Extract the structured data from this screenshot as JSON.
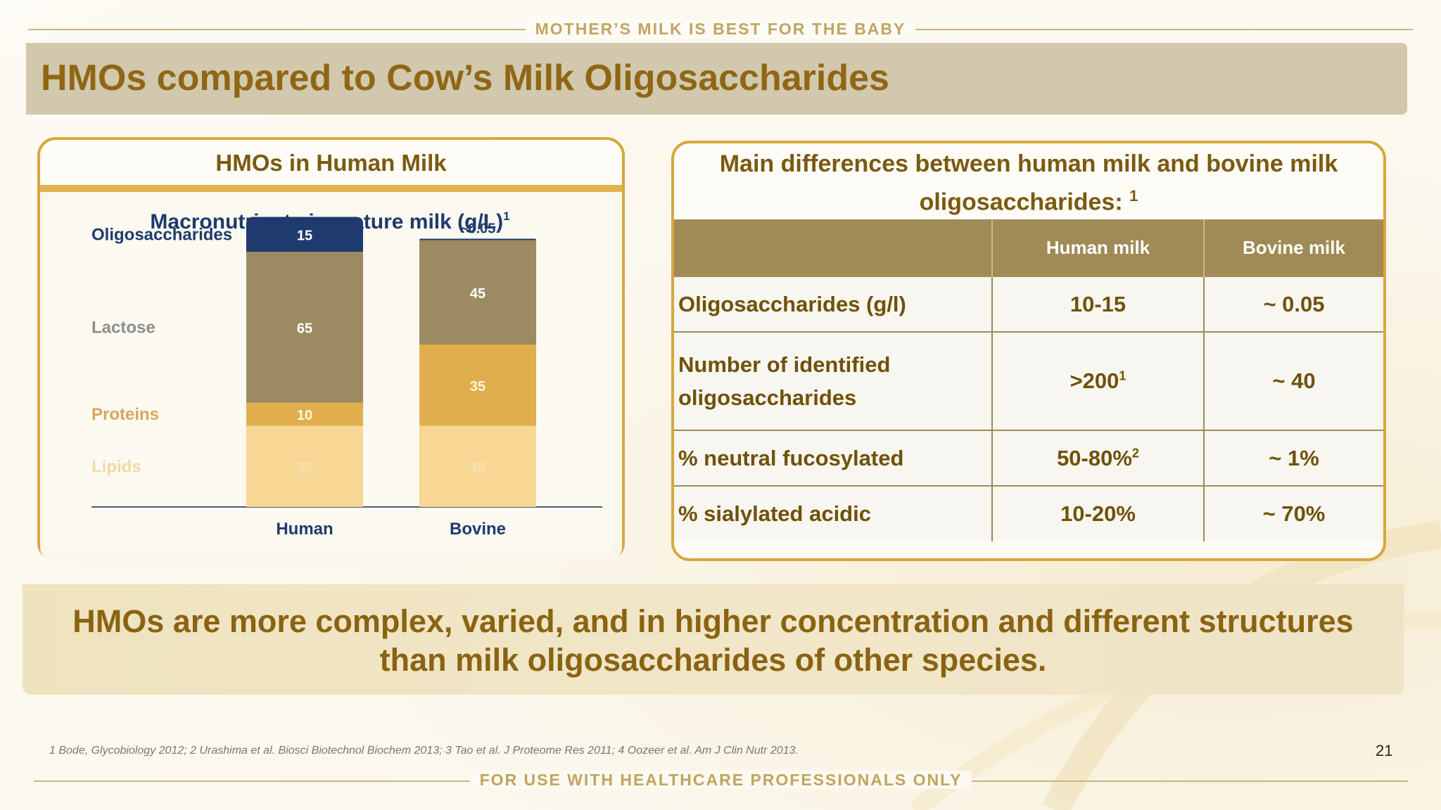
{
  "header": {
    "tagline": "MOTHER’S MILK IS BEST FOR THE BABY",
    "title": "HMOs compared to Cow’s Milk Oligosaccharides"
  },
  "left_panel": {
    "title": "HMOs in Human Milk"
  },
  "chart_data": {
    "type": "bar",
    "stacked": true,
    "title": "Macronutrients in mature milk (g/L)",
    "title_sup": "1",
    "categories": [
      "Human",
      "Bovine"
    ],
    "series": [
      {
        "name": "Lipids",
        "values": [
          35,
          35
        ],
        "labels": [
          "35",
          "35"
        ],
        "color": "#f7d793",
        "label_color": "#f4e3b6"
      },
      {
        "name": "Proteins",
        "values": [
          10,
          35
        ],
        "labels": [
          "10",
          "35"
        ],
        "color": "#e1ae4d",
        "label_color": "#fff6df"
      },
      {
        "name": "Lactose",
        "values": [
          65,
          45
        ],
        "labels": [
          "65",
          "45"
        ],
        "color": "#9c8b62",
        "label_color": "#ffffff"
      },
      {
        "name": "Oligosaccharides",
        "values": [
          15,
          0.05
        ],
        "labels": [
          "15",
          "~0.05"
        ],
        "color": "#1e3a6e",
        "label_color": "#ffffff"
      }
    ],
    "legend_colors": {
      "Oligosaccharides": "#1e3a6e",
      "Lactose": "#8d8d8d",
      "Proteins": "#d9a75a",
      "Lipids": "#f3d9a4"
    },
    "label_dark": "#1e3a6e",
    "xlabel": "",
    "ylabel": "",
    "ylim": [
      0,
      125
    ]
  },
  "right_panel": {
    "title_line1": "Main differences between human milk and bovine milk",
    "title_line2": "oligosaccharides:",
    "title_sup": "1",
    "columns": [
      "",
      "Human milk",
      "Bovine milk"
    ],
    "rows": [
      {
        "label": "Oligosaccharides (g/l)",
        "label2": "",
        "human": "10-15",
        "human_sup": "",
        "bovine": "~ 0.05"
      },
      {
        "label": "Number of identified",
        "label2": "oligosaccharides",
        "human": ">200",
        "human_sup": "1",
        "bovine": "~ 40"
      },
      {
        "label": "% neutral fucosylated",
        "label2": "",
        "human": "50-80%",
        "human_sup": "2",
        "bovine": "~ 1%"
      },
      {
        "label": "% sialylated acidic",
        "label2": "",
        "human": "10-20%",
        "human_sup": "",
        "bovine": "~ 70%"
      }
    ]
  },
  "banner": {
    "line1": "HMOs are more complex, varied, and in higher concentration and different structures",
    "line2": "than milk oligosaccharides of other species."
  },
  "footer": {
    "references": "1 Bode, Glycobiology 2012; 2 Urashima et al. Biosci Biotechnol Biochem 2013; 3 Tao et al. J Proteome Res 2011; 4 Oozeer et al. Am J Clin Nutr 2013.",
    "page_number": "21",
    "disclaimer": "FOR USE WITH HEALTHCARE PROFESSIONALS ONLY"
  },
  "colors": {
    "title": "#8f6714",
    "accent": "#d6a83e",
    "table_header": "#a08a55"
  }
}
